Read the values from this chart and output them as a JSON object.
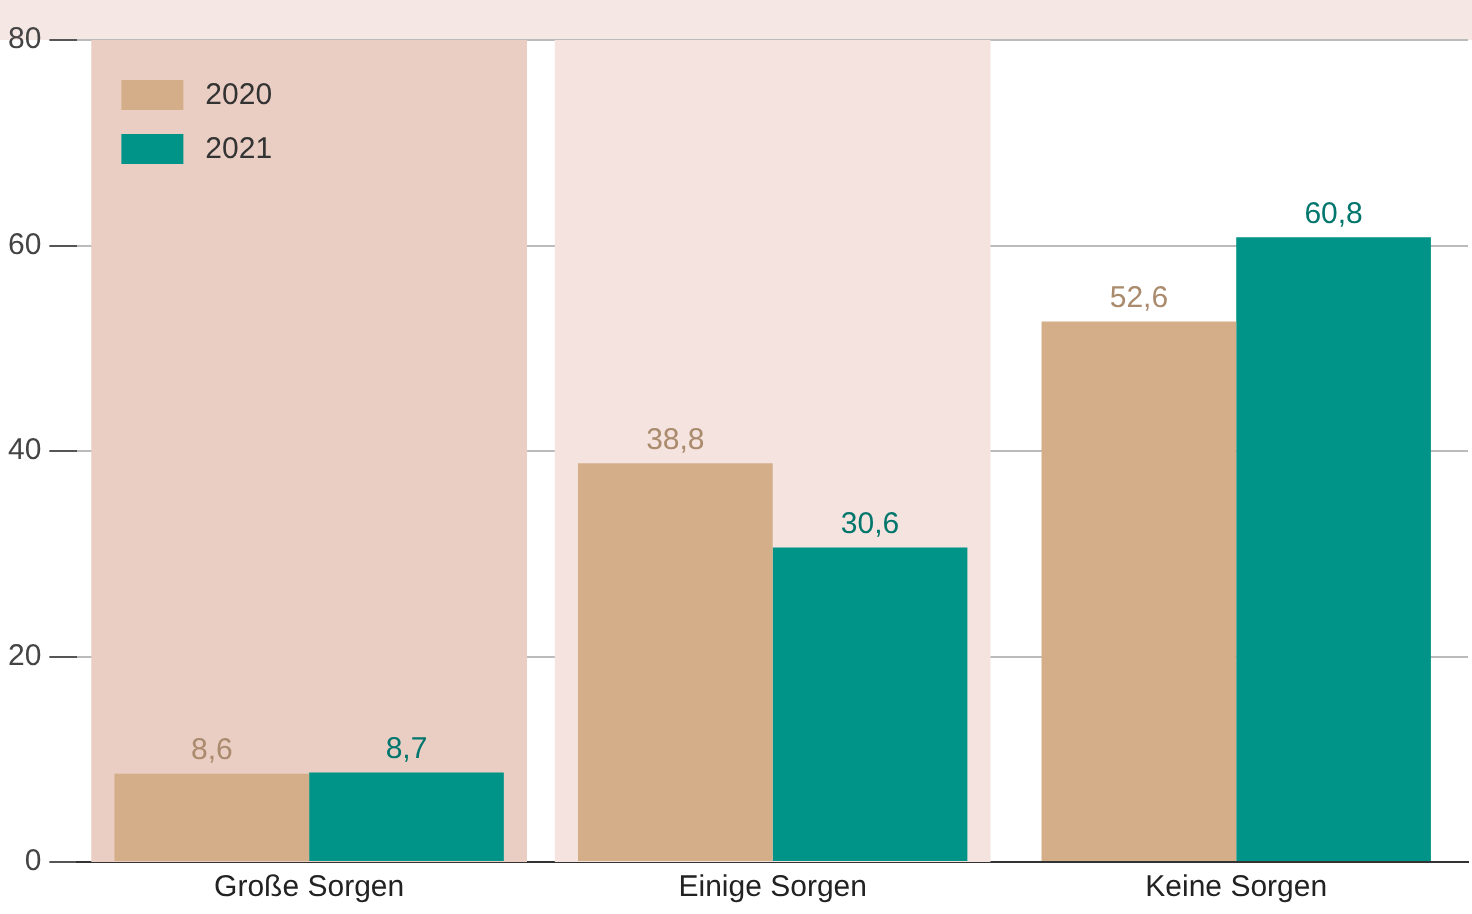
{
  "chart_data": {
    "type": "bar",
    "categories": [
      "Große Sorgen",
      "Einige Sorgen",
      "Keine Sorgen"
    ],
    "series": [
      {
        "name": "2020",
        "color": "#d4ae88",
        "values": [
          8.6,
          38.8,
          52.6
        ],
        "value_labels": [
          "8,6",
          "38,8",
          "52,6"
        ]
      },
      {
        "name": "2021",
        "color": "#009387",
        "values": [
          8.7,
          30.6,
          60.8
        ],
        "value_labels": [
          "8,7",
          "30,6",
          "60,8"
        ]
      }
    ],
    "ylim": [
      0,
      80
    ],
    "yticks": [
      0,
      20,
      40,
      60,
      80
    ],
    "grid": "y",
    "legend": "top left",
    "bands": [
      {
        "axis": "x",
        "from": "Große Sorgen",
        "to": "Große Sorgen",
        "color": "#eacdc3"
      },
      {
        "axis": "x",
        "from": "Einige Sorgen",
        "to": "Einige Sorgen",
        "color": "#f4e3de"
      }
    ]
  }
}
